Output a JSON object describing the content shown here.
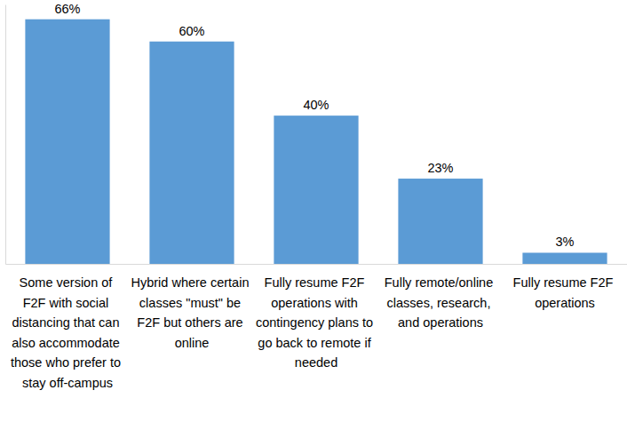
{
  "chart_data": {
    "type": "bar",
    "categories": [
      "Some version of F2F with social distancing that can also accommodate those who prefer to stay off-campus",
      "Hybrid where certain classes \"must\" be F2F but others are online",
      "Fully resume F2F operations with contingency plans to go back to remote if needed",
      "Fully remote/online classes, research, and operations",
      "Fully resume F2F operations"
    ],
    "values": [
      66,
      60,
      40,
      23,
      3
    ],
    "value_labels": [
      "66%",
      "60%",
      "40%",
      "23%",
      "3%"
    ],
    "color": "#5b9bd5",
    "ylim": [
      0,
      70
    ],
    "yticks": [
      0
    ],
    "data_labels": true,
    "tick_labels": "x",
    "grid": false
  }
}
